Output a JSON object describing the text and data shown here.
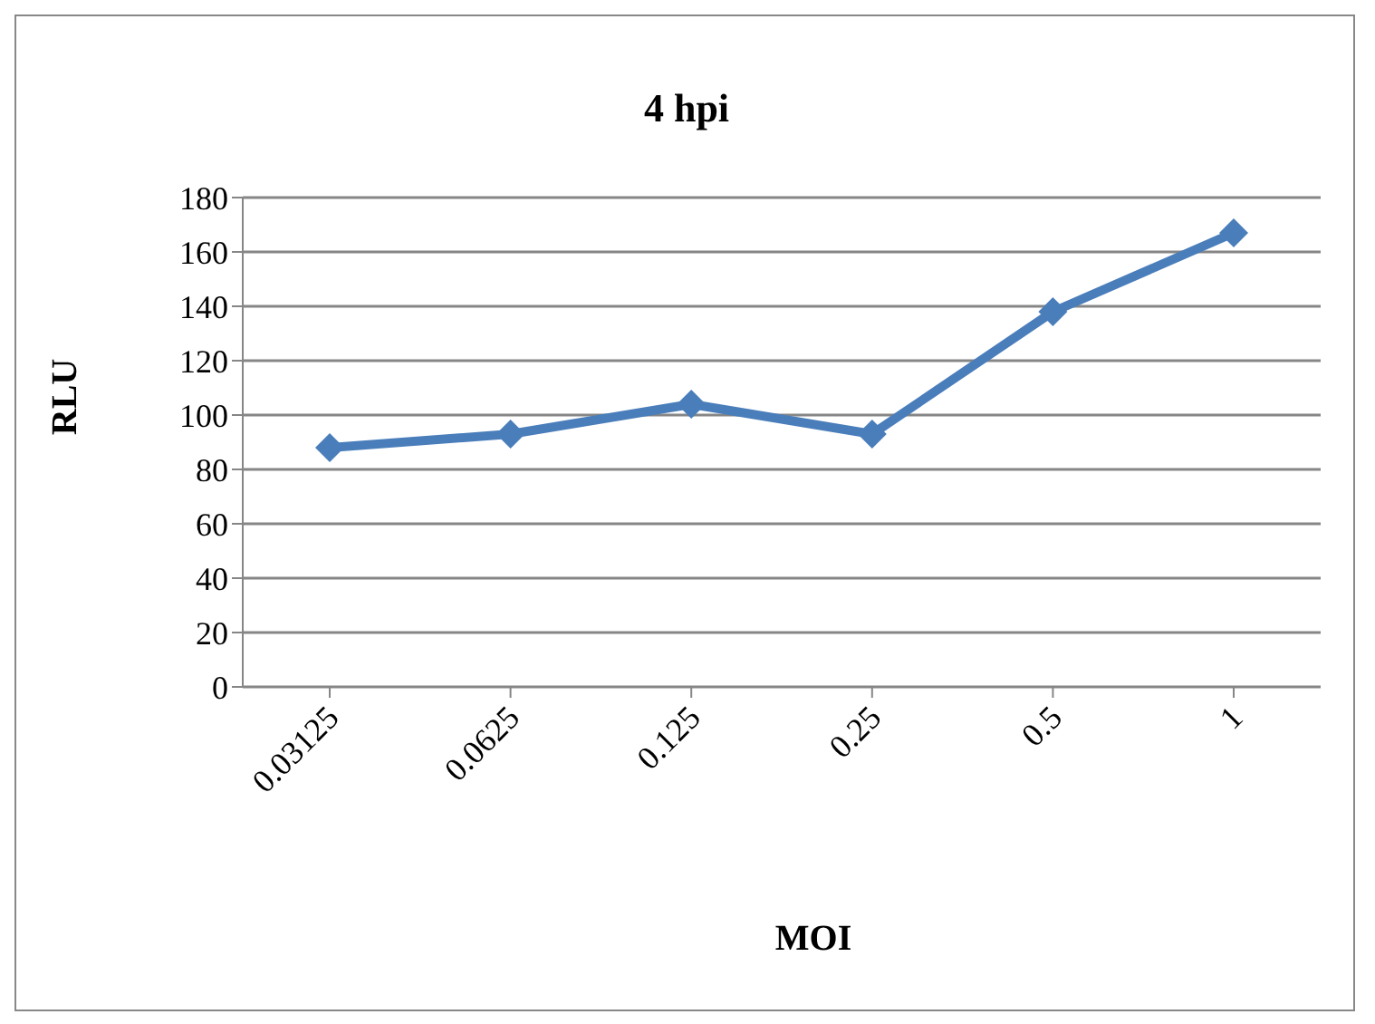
{
  "chart_data": {
    "type": "line",
    "title": "4 hpi",
    "xlabel": "MOI",
    "ylabel": "RLU",
    "categories": [
      "0.03125",
      "0.0625",
      "0.125",
      "0.25",
      "0.5",
      "1"
    ],
    "series": [
      {
        "color": "#4a7ebb",
        "values": [
          88,
          93,
          104,
          93,
          138,
          167
        ]
      }
    ],
    "ylim": [
      0,
      180
    ],
    "yticks": [
      0,
      20,
      40,
      60,
      80,
      100,
      120,
      140,
      160,
      180
    ],
    "grid": "y",
    "marker": "diamond"
  }
}
